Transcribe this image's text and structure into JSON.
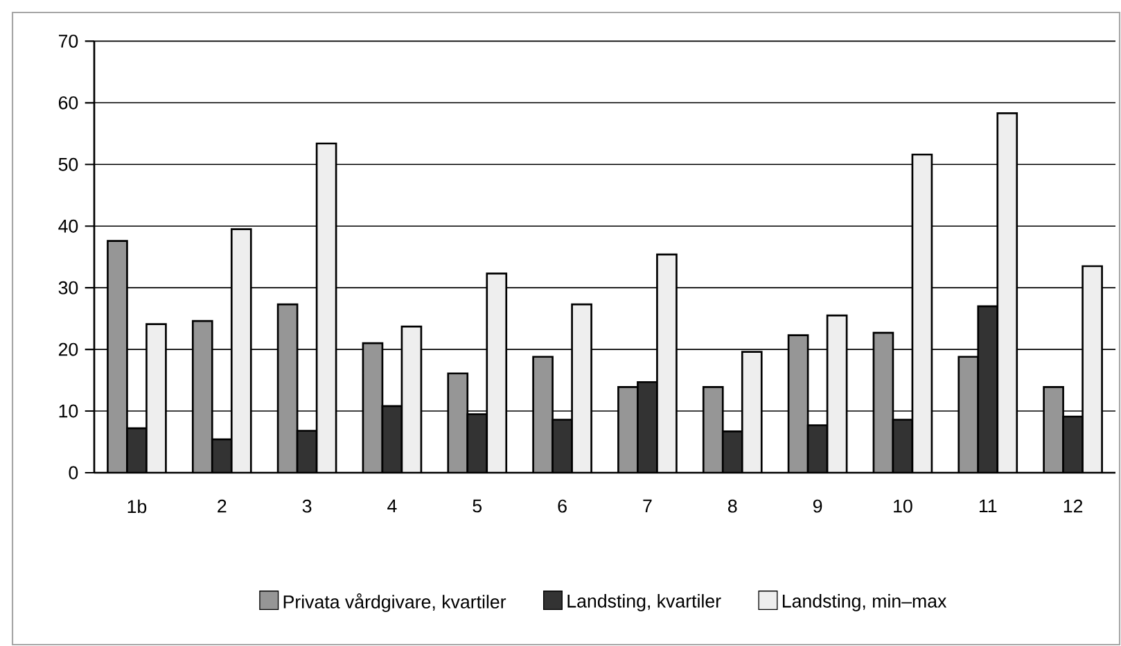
{
  "chart_data": {
    "type": "bar",
    "categories": [
      "1b",
      "2",
      "3",
      "4",
      "5",
      "6",
      "7",
      "8",
      "9",
      "10",
      "11",
      "12"
    ],
    "series": [
      {
        "name": "Privata vårdgivare, kvartiler",
        "color": "#969696",
        "values": [
          37.6,
          24.6,
          27.3,
          21.0,
          16.1,
          18.8,
          13.9,
          13.9,
          22.3,
          22.7,
          18.8,
          13.9
        ]
      },
      {
        "name": "Landsting, kvartiler",
        "color": "#333333",
        "values": [
          7.2,
          5.4,
          6.8,
          10.8,
          9.5,
          8.6,
          14.7,
          6.7,
          7.7,
          8.6,
          27.0,
          9.1
        ]
      },
      {
        "name": "Landsting, min–max",
        "color": "#eeeeee",
        "values": [
          24.1,
          39.5,
          53.4,
          23.7,
          32.3,
          27.3,
          35.4,
          19.6,
          25.5,
          51.6,
          58.3,
          33.5
        ]
      }
    ],
    "ylim": [
      0,
      70
    ],
    "yticks": [
      0,
      10,
      20,
      30,
      40,
      50,
      60,
      70
    ],
    "grid": "y",
    "legend": "bottom"
  }
}
